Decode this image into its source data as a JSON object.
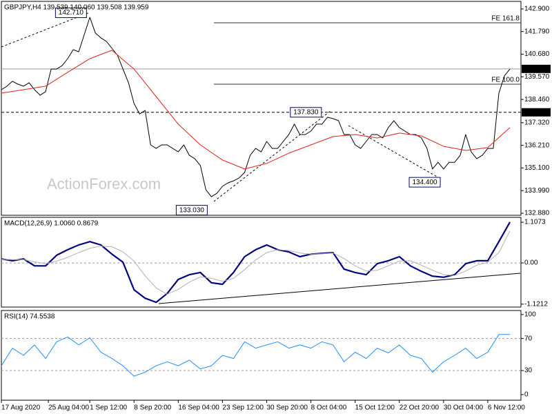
{
  "chart_data": [
    {
      "type": "line",
      "title": "GBPJPY,H4  139.539 140.060 139.508 139.959",
      "watermark": "ActionForex.com",
      "xlim": [
        0,
        94
      ],
      "ylim": [
        132.78,
        143.27
      ],
      "yticks": [
        {
          "value": 142.9,
          "label": "142.900"
        },
        {
          "value": 141.79,
          "label": "141.790"
        },
        {
          "value": 140.68,
          "label": "140.680"
        },
        {
          "value": 139.57,
          "label": "139.570"
        },
        {
          "value": 138.46,
          "label": "138.460"
        },
        {
          "value": 137.32,
          "label": "137.320"
        },
        {
          "value": 136.21,
          "label": "136.210"
        },
        {
          "value": 135.1,
          "label": "135.100"
        },
        {
          "value": 133.99,
          "label": "133.990"
        },
        {
          "value": 132.88,
          "label": "132.880"
        }
      ],
      "series": [
        {
          "color": "#000000",
          "width": 1,
          "x": [
            0,
            1,
            2,
            3,
            4,
            5,
            6,
            7,
            8,
            9,
            10,
            11,
            12,
            13,
            14,
            15,
            16,
            17,
            18,
            19,
            20,
            21,
            22,
            23,
            24,
            25,
            26,
            27,
            28,
            29,
            30,
            31,
            32,
            33,
            34,
            35,
            36,
            37,
            38,
            39,
            40,
            41,
            42,
            43,
            44,
            45,
            46,
            47,
            48,
            49,
            50,
            51,
            52,
            53,
            54,
            55,
            56,
            57,
            58,
            59,
            60,
            61,
            62,
            63,
            64,
            65,
            66,
            67,
            68,
            69,
            70,
            71,
            72,
            73,
            74,
            75,
            76,
            77,
            78,
            79,
            80,
            81,
            82,
            83,
            84,
            85,
            86,
            87,
            88,
            89,
            90,
            91,
            92
          ],
          "values": [
            138.94,
            139.11,
            139.35,
            139.21,
            139.11,
            139.28,
            138.94,
            138.67,
            138.84,
            139.95,
            139.95,
            140.12,
            140.46,
            140.9,
            140.8,
            141.65,
            142.49,
            141.72,
            141.48,
            141.31,
            140.97,
            140.63,
            139.95,
            139.28,
            138.26,
            137.75,
            137.92,
            136.23,
            136.06,
            136.23,
            136.23,
            136.06,
            135.89,
            136.23,
            135.72,
            135.55,
            135.22,
            134.03,
            133.69,
            133.86,
            134.2,
            134.37,
            134.47,
            134.61,
            134.88,
            135.72,
            136.06,
            135.89,
            136.4,
            136.06,
            136.06,
            136.4,
            136.74,
            137.25,
            136.74,
            136.74,
            136.91,
            137.25,
            137.25,
            137.59,
            137.52,
            137.42,
            136.74,
            136.74,
            136.23,
            136.06,
            136.4,
            136.74,
            136.74,
            136.57,
            137.08,
            137.42,
            137.08,
            136.91,
            136.74,
            136.74,
            136.57,
            136.06,
            135.05,
            135.38,
            135.05,
            135.38,
            135.38,
            135.72,
            136.74,
            135.89,
            135.55,
            135.72,
            136.06,
            136.06,
            138.77,
            139.62,
            139.95
          ]
        },
        {
          "color": "#e0201c",
          "width": 1,
          "x": [
            0,
            4,
            8,
            12,
            16,
            20,
            24,
            28,
            32,
            36,
            40,
            44,
            48,
            52,
            56,
            60,
            64,
            68,
            72,
            76,
            80,
            84,
            88,
            92
          ],
          "values": [
            138.77,
            138.94,
            139.11,
            139.79,
            140.46,
            140.87,
            139.95,
            138.6,
            137.25,
            136.23,
            135.49,
            135.05,
            135.32,
            135.83,
            136.23,
            136.64,
            136.74,
            136.57,
            136.81,
            136.67,
            136.16,
            135.96,
            136.1,
            137.08
          ]
        }
      ],
      "levels": [
        {
          "value": 139.959,
          "label": "139.959",
          "style": "solid"
        },
        {
          "value": 137.83,
          "label": "137.830",
          "style": "dashed"
        }
      ],
      "fe": [
        {
          "value": 142.22,
          "label": "FE 161.8"
        },
        {
          "value": 139.21,
          "label": "FE 100.0"
        }
      ],
      "annotations": [
        {
          "x": 15.4,
          "value": 142.71,
          "label": "142.710"
        },
        {
          "x": 57.9,
          "value": 137.83,
          "label": "137.830"
        },
        {
          "x": 79.4,
          "value": 134.4,
          "label": "134.400"
        },
        {
          "x": 37.25,
          "value": 133.03,
          "label": "133.030"
        }
      ]
    },
    {
      "type": "line",
      "title": "MACD(12,26,9) 1.0060 0.8679",
      "xlim": [
        0,
        94
      ],
      "ylim": [
        -1.2,
        1.24
      ],
      "yticks": [
        1.1073,
        {
          "value": 0,
          "label": "0.00"
        },
        -1.1212
      ],
      "levels": [
        0
      ],
      "series": [
        {
          "color": "#00007f",
          "width": 2.2,
          "x": [
            0,
            2,
            4,
            6,
            8,
            10,
            12,
            14,
            16,
            18,
            20,
            22,
            24,
            26,
            28,
            30,
            32,
            34,
            36,
            38,
            40,
            42,
            44,
            46,
            48,
            50,
            52,
            54,
            56,
            58,
            60,
            62,
            64,
            66,
            68,
            70,
            72,
            74,
            76,
            78,
            80,
            82,
            84,
            86,
            88,
            90,
            92
          ],
          "values": [
            0.11,
            0.06,
            0.11,
            -0.08,
            -0.08,
            0.21,
            0.36,
            0.49,
            0.58,
            0.49,
            0.24,
            0.02,
            -0.73,
            -0.96,
            -1.07,
            -0.83,
            -0.45,
            -0.32,
            -0.26,
            -0.54,
            -0.58,
            -0.26,
            0.17,
            0.36,
            0.49,
            0.36,
            0.3,
            0.17,
            0.24,
            0.26,
            0.28,
            -0.17,
            -0.26,
            -0.32,
            -0.02,
            0.06,
            0.17,
            -0.08,
            -0.23,
            -0.36,
            -0.39,
            -0.32,
            -0.02,
            0.06,
            0.06,
            0.58,
            1.11
          ]
        },
        {
          "color": "#b0b0b0",
          "width": 1,
          "x": [
            0,
            2,
            4,
            6,
            8,
            10,
            12,
            14,
            16,
            18,
            20,
            22,
            24,
            26,
            28,
            30,
            32,
            34,
            36,
            38,
            40,
            42,
            44,
            46,
            48,
            50,
            52,
            54,
            56,
            58,
            60,
            62,
            64,
            66,
            68,
            70,
            72,
            74,
            76,
            78,
            80,
            82,
            84,
            86,
            88,
            90,
            92
          ],
          "values": [
            0.1,
            0.09,
            0.09,
            0.03,
            -0.02,
            0.05,
            0.15,
            0.28,
            0.4,
            0.46,
            0.44,
            0.3,
            0.05,
            -0.35,
            -0.68,
            -0.85,
            -0.72,
            -0.52,
            -0.38,
            -0.42,
            -0.5,
            -0.42,
            -0.18,
            0.08,
            0.28,
            0.36,
            0.34,
            0.27,
            0.24,
            0.25,
            0.27,
            0.12,
            -0.08,
            -0.22,
            -0.2,
            -0.08,
            0.05,
            0.06,
            -0.06,
            -0.2,
            -0.32,
            -0.34,
            -0.22,
            -0.06,
            0.02,
            0.28,
            0.87
          ]
        }
      ]
    },
    {
      "type": "line",
      "title": "RSI(14) 74.5538",
      "xlim": [
        0,
        94
      ],
      "ylim": [
        -7,
        105
      ],
      "yticks": [
        100,
        70,
        30,
        0
      ],
      "levels": [
        70,
        30
      ],
      "xticks": [
        {
          "value": 0,
          "label": "17 Aug 2020"
        },
        {
          "value": 8.5,
          "label": "25 Aug 04:00"
        },
        {
          "value": 16,
          "label": "1 Sep 12:00"
        },
        {
          "value": 24,
          "label": "8 Sep 20:00"
        },
        {
          "value": 32,
          "label": "16 Sep 04:00"
        },
        {
          "value": 40,
          "label": "23 Sep 12:00"
        },
        {
          "value": 48,
          "label": "30 Sep 20:00"
        },
        {
          "value": 56,
          "label": "8 Oct 04:00"
        },
        {
          "value": 64,
          "label": "15 Oct 12:00"
        },
        {
          "value": 72,
          "label": "22 Oct 20:00"
        },
        {
          "value": 80,
          "label": "30 Oct 04:00"
        },
        {
          "value": 88,
          "label": "6 Nov 12:00"
        }
      ],
      "series": [
        {
          "color": "#1e90ff",
          "width": 1,
          "x": [
            0,
            2,
            4,
            6,
            8,
            10,
            12,
            14,
            16,
            18,
            20,
            22,
            24,
            26,
            28,
            30,
            32,
            34,
            36,
            38,
            40,
            42,
            44,
            46,
            48,
            50,
            52,
            54,
            56,
            58,
            60,
            62,
            64,
            66,
            68,
            70,
            72,
            74,
            76,
            78,
            80,
            82,
            84,
            86,
            88,
            90,
            92
          ],
          "values": [
            36,
            58,
            49,
            62,
            45,
            66,
            72,
            62,
            71,
            53,
            45,
            36,
            23,
            28,
            36,
            41,
            36,
            43,
            32,
            36,
            49,
            45,
            66,
            58,
            62,
            66,
            58,
            62,
            58,
            66,
            62,
            41,
            53,
            45,
            58,
            52,
            62,
            49,
            45,
            28,
            41,
            49,
            58,
            45,
            53,
            75,
            75
          ]
        }
      ]
    }
  ]
}
